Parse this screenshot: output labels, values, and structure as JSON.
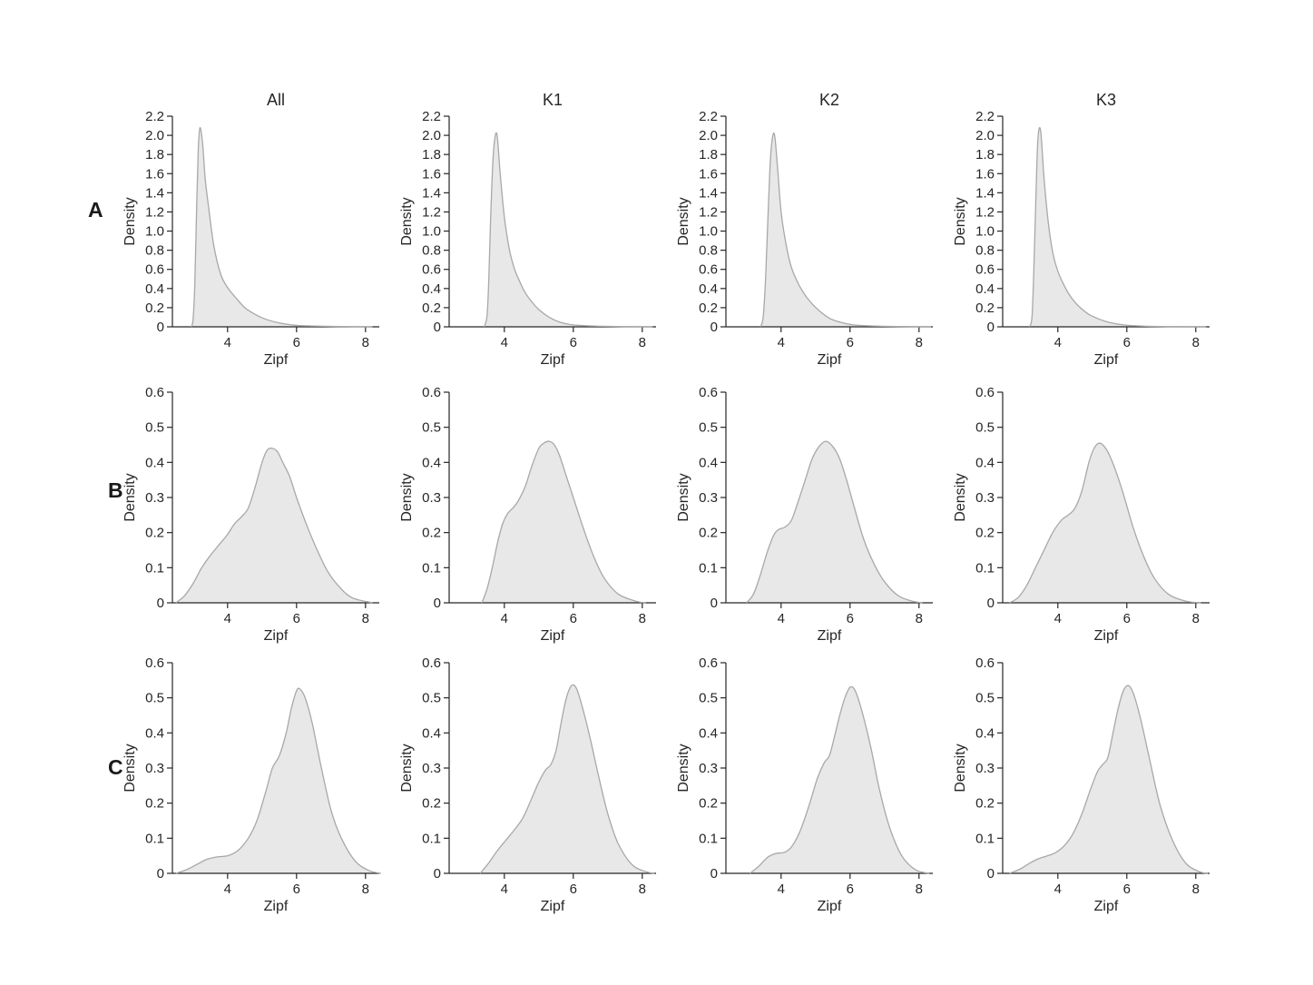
{
  "figure": {
    "row_labels": [
      "A",
      "B",
      "C"
    ],
    "column_titles": [
      "All",
      "K1",
      "K2",
      "K3"
    ]
  },
  "chart_data": {
    "type": "area",
    "subtype": "kernel-density-estimate",
    "layout": "3 rows (A, B, C) x 4 columns (All, K1, K2, K3) of small-multiple density plots; no grid, no legend",
    "xlabel": "Zipf",
    "ylabel": "Density",
    "xlim": [
      2.4,
      8.4
    ],
    "xtick_values": [
      4,
      6,
      8
    ],
    "xtick_labels": [
      "4",
      "6",
      "8"
    ],
    "grid": false,
    "legend": false,
    "fill_color": "#e8e8e8",
    "line_color": "#a8a8a8",
    "axis_color": "#262626",
    "text_color": "#262626",
    "columns": [
      "All",
      "K1",
      "K2",
      "K3"
    ],
    "rows": [
      {
        "label": "A",
        "ylim": [
          0,
          2.2
        ],
        "ytick_values": [
          0,
          0.2,
          0.4,
          0.6,
          0.8,
          1.0,
          1.2,
          1.4,
          1.6,
          1.8,
          2.0,
          2.2
        ],
        "ytick_labels": [
          "0",
          "0.2",
          "0.4",
          "0.6",
          "0.8",
          "1.0",
          "1.2",
          "1.4",
          "1.6",
          "1.8",
          "2.0",
          "2.2"
        ]
      },
      {
        "label": "B",
        "ylim": [
          0,
          0.6
        ],
        "ytick_values": [
          0,
          0.1,
          0.2,
          0.3,
          0.4,
          0.5,
          0.6
        ],
        "ytick_labels": [
          "0",
          "0.1",
          "0.2",
          "0.3",
          "0.4",
          "0.5",
          "0.6"
        ]
      },
      {
        "label": "C",
        "ylim": [
          0,
          0.6
        ],
        "ytick_values": [
          0,
          0.1,
          0.2,
          0.3,
          0.4,
          0.5,
          0.6
        ],
        "ytick_labels": [
          "0",
          "0.1",
          "0.2",
          "0.3",
          "0.4",
          "0.5",
          "0.6"
        ]
      }
    ],
    "panels": [
      {
        "row": "A",
        "column": "All",
        "x": [
          2.95,
          3.0,
          3.05,
          3.1,
          3.15,
          3.2,
          3.28,
          3.35,
          3.45,
          3.6,
          3.8,
          4.0,
          4.2,
          4.5,
          4.8,
          5.1,
          5.5,
          6.0,
          6.5,
          7.2,
          8.2
        ],
        "density": [
          0,
          0.08,
          0.45,
          1.2,
          1.85,
          2.08,
          1.9,
          1.55,
          1.25,
          0.85,
          0.55,
          0.41,
          0.32,
          0.2,
          0.13,
          0.08,
          0.04,
          0.015,
          0.008,
          0.003,
          0
        ]
      },
      {
        "row": "A",
        "column": "K1",
        "x": [
          3.42,
          3.5,
          3.55,
          3.6,
          3.68,
          3.78,
          3.88,
          4.0,
          4.15,
          4.3,
          4.45,
          4.6,
          4.8,
          5.0,
          5.3,
          5.6,
          6.0,
          6.6,
          7.5,
          8.3
        ],
        "density": [
          0,
          0.12,
          0.5,
          1.1,
          1.8,
          2.02,
          1.6,
          1.15,
          0.8,
          0.6,
          0.47,
          0.36,
          0.26,
          0.18,
          0.1,
          0.05,
          0.02,
          0.008,
          0.002,
          0
        ]
      },
      {
        "row": "A",
        "column": "K2",
        "x": [
          3.4,
          3.48,
          3.55,
          3.62,
          3.7,
          3.8,
          3.9,
          4.0,
          4.15,
          4.3,
          4.5,
          4.7,
          4.9,
          5.1,
          5.4,
          5.7,
          6.1,
          6.7,
          7.5,
          8.35
        ],
        "density": [
          0,
          0.1,
          0.5,
          1.15,
          1.8,
          2.02,
          1.65,
          1.2,
          0.85,
          0.62,
          0.45,
          0.33,
          0.24,
          0.17,
          0.09,
          0.05,
          0.02,
          0.008,
          0.003,
          0
        ]
      },
      {
        "row": "A",
        "column": "K3",
        "x": [
          3.18,
          3.25,
          3.3,
          3.36,
          3.42,
          3.5,
          3.6,
          3.72,
          3.85,
          4.0,
          4.2,
          4.4,
          4.65,
          4.9,
          5.2,
          5.5,
          5.9,
          6.4,
          7.2,
          8.3
        ],
        "density": [
          0,
          0.1,
          0.55,
          1.3,
          1.95,
          2.05,
          1.55,
          1.1,
          0.78,
          0.58,
          0.42,
          0.3,
          0.2,
          0.13,
          0.08,
          0.045,
          0.02,
          0.008,
          0.002,
          0
        ]
      },
      {
        "row": "B",
        "column": "All",
        "x": [
          2.5,
          2.75,
          3.0,
          3.25,
          3.5,
          3.75,
          4.0,
          4.2,
          4.4,
          4.6,
          4.8,
          5.0,
          5.15,
          5.3,
          5.45,
          5.6,
          5.8,
          6.0,
          6.3,
          6.6,
          6.9,
          7.2,
          7.6,
          8.2
        ],
        "density": [
          0,
          0.02,
          0.055,
          0.1,
          0.135,
          0.165,
          0.195,
          0.225,
          0.245,
          0.27,
          0.33,
          0.4,
          0.435,
          0.44,
          0.43,
          0.4,
          0.36,
          0.3,
          0.22,
          0.15,
          0.09,
          0.05,
          0.015,
          0
        ]
      },
      {
        "row": "B",
        "column": "K1",
        "x": [
          3.35,
          3.5,
          3.65,
          3.8,
          3.95,
          4.1,
          4.25,
          4.4,
          4.6,
          4.8,
          5.0,
          5.15,
          5.3,
          5.45,
          5.6,
          5.8,
          6.0,
          6.3,
          6.6,
          6.9,
          7.3,
          7.8,
          8.1
        ],
        "density": [
          0,
          0.04,
          0.1,
          0.17,
          0.225,
          0.255,
          0.27,
          0.29,
          0.33,
          0.39,
          0.44,
          0.455,
          0.46,
          0.45,
          0.42,
          0.36,
          0.3,
          0.21,
          0.13,
          0.07,
          0.025,
          0.005,
          0
        ]
      },
      {
        "row": "B",
        "column": "K2",
        "x": [
          3.0,
          3.2,
          3.4,
          3.6,
          3.8,
          3.95,
          4.1,
          4.3,
          4.5,
          4.7,
          4.9,
          5.1,
          5.3,
          5.5,
          5.7,
          5.9,
          6.1,
          6.4,
          6.7,
          7.0,
          7.4,
          7.8,
          8.1
        ],
        "density": [
          0,
          0.025,
          0.08,
          0.145,
          0.195,
          0.21,
          0.215,
          0.235,
          0.29,
          0.35,
          0.41,
          0.445,
          0.46,
          0.445,
          0.41,
          0.35,
          0.28,
          0.18,
          0.11,
          0.06,
          0.02,
          0.005,
          0
        ]
      },
      {
        "row": "B",
        "column": "K3",
        "x": [
          2.6,
          2.85,
          3.1,
          3.35,
          3.6,
          3.85,
          4.1,
          4.3,
          4.5,
          4.7,
          4.9,
          5.05,
          5.2,
          5.35,
          5.5,
          5.7,
          5.9,
          6.2,
          6.5,
          6.8,
          7.2,
          7.7,
          8.15
        ],
        "density": [
          0,
          0.015,
          0.05,
          0.1,
          0.15,
          0.2,
          0.235,
          0.25,
          0.27,
          0.32,
          0.4,
          0.44,
          0.455,
          0.445,
          0.42,
          0.37,
          0.31,
          0.21,
          0.13,
          0.07,
          0.025,
          0.005,
          0
        ]
      },
      {
        "row": "C",
        "column": "All",
        "x": [
          2.5,
          2.8,
          3.1,
          3.4,
          3.7,
          4.0,
          4.3,
          4.6,
          4.85,
          5.1,
          5.3,
          5.5,
          5.7,
          5.85,
          6.0,
          6.1,
          6.25,
          6.45,
          6.7,
          7.0,
          7.3,
          7.7,
          8.1,
          8.45
        ],
        "density": [
          0,
          0.01,
          0.025,
          0.04,
          0.047,
          0.05,
          0.065,
          0.1,
          0.15,
          0.23,
          0.3,
          0.335,
          0.4,
          0.47,
          0.52,
          0.525,
          0.5,
          0.43,
          0.31,
          0.18,
          0.1,
          0.035,
          0.008,
          0
        ]
      },
      {
        "row": "C",
        "column": "K1",
        "x": [
          3.3,
          3.55,
          3.8,
          4.05,
          4.3,
          4.55,
          4.8,
          5.0,
          5.2,
          5.35,
          5.5,
          5.65,
          5.8,
          5.95,
          6.1,
          6.3,
          6.5,
          6.75,
          7.0,
          7.3,
          7.7,
          8.1,
          8.35
        ],
        "density": [
          0,
          0.03,
          0.065,
          0.095,
          0.125,
          0.16,
          0.215,
          0.26,
          0.295,
          0.31,
          0.35,
          0.43,
          0.5,
          0.535,
          0.525,
          0.46,
          0.38,
          0.27,
          0.17,
          0.085,
          0.025,
          0.005,
          0
        ]
      },
      {
        "row": "C",
        "column": "K2",
        "x": [
          3.1,
          3.35,
          3.6,
          3.8,
          3.95,
          4.1,
          4.3,
          4.55,
          4.8,
          5.05,
          5.25,
          5.4,
          5.55,
          5.7,
          5.85,
          6.0,
          6.15,
          6.35,
          6.6,
          6.85,
          7.15,
          7.5,
          7.9,
          8.3
        ],
        "density": [
          0,
          0.02,
          0.045,
          0.055,
          0.058,
          0.06,
          0.075,
          0.12,
          0.19,
          0.27,
          0.315,
          0.335,
          0.39,
          0.45,
          0.5,
          0.53,
          0.52,
          0.46,
          0.36,
          0.24,
          0.13,
          0.05,
          0.01,
          0
        ]
      },
      {
        "row": "C",
        "column": "K3",
        "x": [
          2.6,
          2.9,
          3.2,
          3.45,
          3.7,
          3.95,
          4.2,
          4.45,
          4.7,
          4.95,
          5.15,
          5.3,
          5.45,
          5.6,
          5.75,
          5.9,
          6.05,
          6.2,
          6.4,
          6.65,
          6.95,
          7.3,
          7.7,
          8.1,
          8.35
        ],
        "density": [
          0,
          0.012,
          0.03,
          0.042,
          0.05,
          0.06,
          0.08,
          0.115,
          0.17,
          0.24,
          0.29,
          0.31,
          0.33,
          0.4,
          0.47,
          0.52,
          0.535,
          0.51,
          0.44,
          0.33,
          0.2,
          0.1,
          0.03,
          0.005,
          0
        ]
      }
    ]
  }
}
